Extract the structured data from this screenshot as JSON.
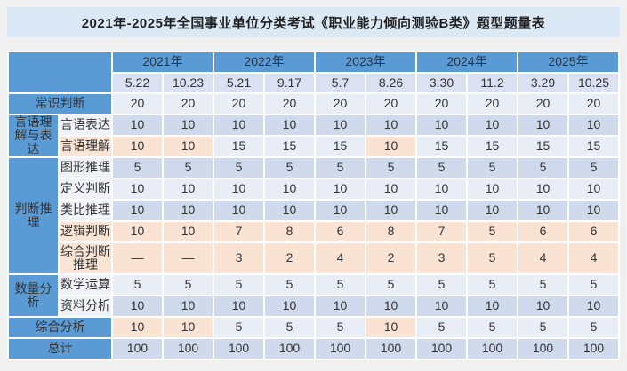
{
  "title": "2021年-2025年全国事业单位分类考试《职业能力倾向测验B类》题型题量表",
  "colors": {
    "header_blue": "#5B9BD5",
    "title_bg": "#DBE8F6",
    "row_light": "#E9EDF6",
    "row_mid": "#CFDAEC",
    "date_row": "#D9E1F2",
    "highlight_orange": "#FBE3D4",
    "label_cell": "#EFF2F9",
    "label_cell_orange": "#FAE4D5",
    "page_bg": "#F0F0F0",
    "text": "#333333"
  },
  "chart_data": {
    "type": "table",
    "title": "2021年-2025年全国事业单位分类考试《职业能力倾向测验B类》题型题量表",
    "column_groups": [
      {
        "year": "2021年",
        "dates": [
          "5.22",
          "10.23"
        ]
      },
      {
        "year": "2022年",
        "dates": [
          "5.21",
          "9.17"
        ]
      },
      {
        "year": "2023年",
        "dates": [
          "5.7",
          "8.26"
        ]
      },
      {
        "year": "2024年",
        "dates": [
          "3.30",
          "11.2"
        ]
      },
      {
        "year": "2025年",
        "dates": [
          "3.29",
          "10.25"
        ]
      }
    ],
    "sections": [
      {
        "group": "常识判断",
        "merged": true,
        "rows": [
          {
            "label": "常识判断",
            "values": [
              "20",
              "20",
              "20",
              "20",
              "20",
              "20",
              "20",
              "20",
              "20",
              "20"
            ],
            "base": "light",
            "orange_cols": []
          }
        ]
      },
      {
        "group": "言语理解与表达",
        "merged": false,
        "rows": [
          {
            "label": "言语表达",
            "values": [
              "10",
              "10",
              "10",
              "10",
              "10",
              "10",
              "10",
              "10",
              "10",
              "10"
            ],
            "base": "mid",
            "orange_cols": []
          },
          {
            "label": "言语理解",
            "values": [
              "10",
              "10",
              "15",
              "15",
              "15",
              "10",
              "15",
              "15",
              "15",
              "15"
            ],
            "base": "light",
            "orange_cols": [
              0,
              1,
              5
            ],
            "label_orange": true
          }
        ]
      },
      {
        "group": "判断推理",
        "merged": false,
        "rows": [
          {
            "label": "图形推理",
            "values": [
              "5",
              "5",
              "5",
              "5",
              "5",
              "5",
              "5",
              "5",
              "5",
              "5"
            ],
            "base": "mid",
            "orange_cols": []
          },
          {
            "label": "定义判断",
            "values": [
              "10",
              "10",
              "10",
              "10",
              "10",
              "10",
              "10",
              "10",
              "10",
              "10"
            ],
            "base": "light",
            "orange_cols": []
          },
          {
            "label": "类比推理",
            "values": [
              "10",
              "10",
              "10",
              "10",
              "10",
              "10",
              "10",
              "10",
              "10",
              "10"
            ],
            "base": "mid",
            "orange_cols": []
          },
          {
            "label": "逻辑判断",
            "values": [
              "10",
              "10",
              "7",
              "8",
              "6",
              "8",
              "7",
              "5",
              "6",
              "6"
            ],
            "base": "orange",
            "orange_cols": [],
            "label_orange": true
          },
          {
            "label": "综合判断推理",
            "values": [
              "—",
              "—",
              "3",
              "2",
              "4",
              "2",
              "3",
              "5",
              "4",
              "4"
            ],
            "base": "orange",
            "orange_cols": [],
            "label_orange": true,
            "tall": true
          }
        ]
      },
      {
        "group": "数量分析",
        "merged": false,
        "rows": [
          {
            "label": "数学运算",
            "values": [
              "5",
              "5",
              "5",
              "5",
              "5",
              "5",
              "5",
              "5",
              "5",
              "5"
            ],
            "base": "light",
            "orange_cols": []
          },
          {
            "label": "资料分析",
            "values": [
              "10",
              "10",
              "10",
              "10",
              "10",
              "10",
              "10",
              "10",
              "10",
              "10"
            ],
            "base": "mid",
            "orange_cols": []
          }
        ]
      },
      {
        "group": "综合分析",
        "merged": true,
        "rows": [
          {
            "label": "综合分析",
            "values": [
              "10",
              "10",
              "5",
              "5",
              "5",
              "10",
              "5",
              "5",
              "5",
              "5"
            ],
            "base": "light",
            "orange_cols": [
              0,
              1,
              5
            ]
          }
        ]
      },
      {
        "group": "总计",
        "merged": true,
        "rows": [
          {
            "label": "总计",
            "values": [
              "100",
              "100",
              "100",
              "100",
              "100",
              "100",
              "100",
              "100",
              "100",
              "100"
            ],
            "base": "mid",
            "orange_cols": []
          }
        ]
      }
    ]
  }
}
